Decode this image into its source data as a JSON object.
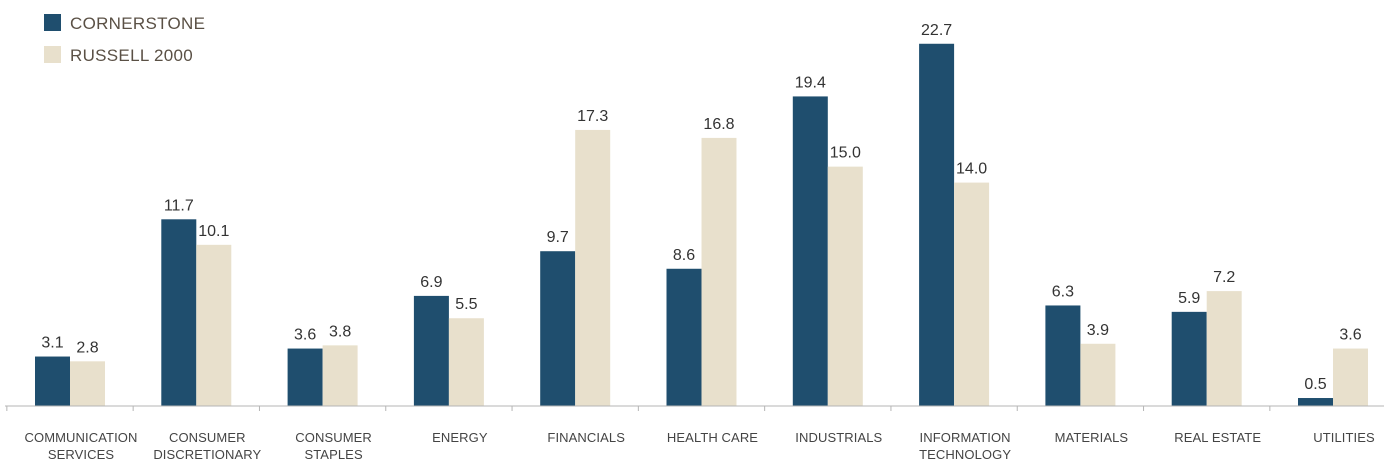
{
  "chart_data": {
    "type": "bar",
    "categories": [
      [
        "COMMUNICATION",
        "SERVICES"
      ],
      [
        "CONSUMER",
        "DISCRETIONARY"
      ],
      [
        "CONSUMER",
        "STAPLES"
      ],
      [
        "ENERGY"
      ],
      [
        "FINANCIALS"
      ],
      [
        "HEALTH CARE"
      ],
      [
        "INDUSTRIALS"
      ],
      [
        "INFORMATION",
        "TECHNOLOGY"
      ],
      [
        "MATERIALS"
      ],
      [
        "REAL ESTATE"
      ],
      [
        "UTILITIES"
      ]
    ],
    "series": [
      {
        "name": "CORNERSTONE",
        "color": "#1f4e6e",
        "values": [
          3.1,
          11.7,
          3.6,
          6.9,
          9.7,
          8.6,
          19.4,
          22.7,
          6.3,
          5.9,
          0.5
        ],
        "labels": [
          "3.1",
          "11.7",
          "3.6",
          "6.9",
          "9.7",
          "8.6",
          "19.4",
          "22.7",
          "6.3",
          "5.9",
          "0.5"
        ]
      },
      {
        "name": "RUSSELL 2000",
        "color": "#e8e0cc",
        "values": [
          2.8,
          10.1,
          3.8,
          5.5,
          17.3,
          16.8,
          15.0,
          14.0,
          3.9,
          7.2,
          3.6
        ],
        "labels": [
          "2.8",
          "10.1",
          "3.8",
          "5.5",
          "17.3",
          "16.8",
          "15.0",
          "14.0",
          "3.9",
          "7.2",
          "3.6"
        ]
      }
    ],
    "title": "",
    "xlabel": "",
    "ylabel": "",
    "ylim": [
      0,
      23.5
    ],
    "grid": false,
    "legend": "top-left"
  }
}
